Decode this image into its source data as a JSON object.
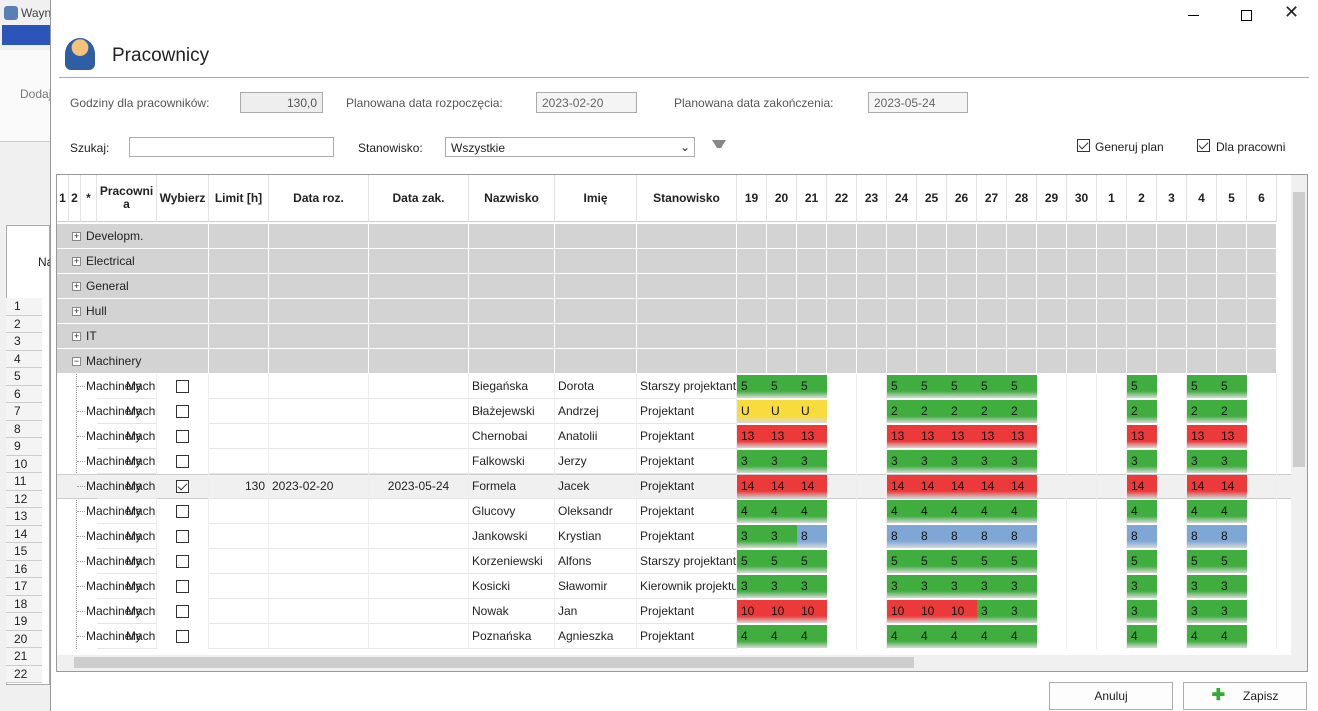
{
  "background": {
    "title": "Wayn",
    "add": "Dodaj",
    "column": "Na",
    "row_numbers": [
      "1",
      "2",
      "3",
      "4",
      "5",
      "6",
      "7",
      "8",
      "9",
      "10",
      "11",
      "12",
      "13",
      "14",
      "15",
      "16",
      "17",
      "18",
      "19",
      "20",
      "21",
      "22"
    ]
  },
  "window": {
    "title": "Pracownicy"
  },
  "form": {
    "hours_label": "Godziny dla pracowników:",
    "hours_value": "130,0",
    "start_label": "Planowana data rozpoczęcia:",
    "start_value": "2023-02-20",
    "end_label": "Planowana data zakończenia:",
    "end_value": "2023-05-24",
    "search_label": "Szukaj:",
    "position_label": "Stanowisko:",
    "position_value": "Wszystkie",
    "generate_label": "Generuj plan",
    "generate_checked": true,
    "for_workers_label": "Dla pracowni",
    "for_workers_checked": true
  },
  "table": {
    "headers": [
      "1",
      "2",
      "*",
      "Pracownia",
      "Wybierz",
      "Limit [h]",
      "Data roz.",
      "Data zak.",
      "Nazwisko",
      "Imię",
      "Stanowisko"
    ],
    "days": [
      "19",
      "20",
      "21",
      "22",
      "23",
      "24",
      "25",
      "26",
      "27",
      "28",
      "29",
      "30",
      "1",
      "2",
      "3",
      "4",
      "5",
      "6"
    ],
    "cell_colors": {
      "2": "#3fae3f",
      "3": "#3fae3f",
      "4": "#3fae3f",
      "5": "#3fae3f",
      "8": "#7fa7d6",
      "10": "#ec3a3a",
      "13": "#ec3a3a",
      "14": "#ec3a3a",
      "U": "#f7dc3c"
    },
    "groups": [
      "Developm.",
      "Electrical",
      "General",
      "Hull",
      "IT",
      "Machinery"
    ],
    "rows": [
      {
        "department": "Machinery",
        "selected": false,
        "limit": null,
        "start": null,
        "end": null,
        "surname": "Biegańska",
        "name": "Dorota",
        "position": "Starszy projektant",
        "days": [
          "5",
          "5",
          "5",
          null,
          null,
          "5",
          "5",
          "5",
          "5",
          "5",
          null,
          null,
          null,
          "5",
          null,
          "5",
          "5",
          null
        ]
      },
      {
        "department": "Machinery",
        "selected": false,
        "limit": null,
        "start": null,
        "end": null,
        "surname": "Błażejewski",
        "name": "Andrzej",
        "position": "Projektant",
        "days": [
          "U",
          "U",
          "U",
          null,
          null,
          "2",
          "2",
          "2",
          "2",
          "2",
          null,
          null,
          null,
          "2",
          null,
          "2",
          "2",
          null
        ]
      },
      {
        "department": "Machinery",
        "selected": false,
        "limit": null,
        "start": null,
        "end": null,
        "surname": "Chernobai",
        "name": "Anatolii",
        "position": "Projektant",
        "days": [
          "13",
          "13",
          "13",
          null,
          null,
          "13",
          "13",
          "13",
          "13",
          "13",
          null,
          null,
          null,
          "13",
          null,
          "13",
          "13",
          null
        ]
      },
      {
        "department": "Machinery",
        "selected": false,
        "limit": null,
        "start": null,
        "end": null,
        "surname": "Falkowski",
        "name": "Jerzy",
        "position": "Projektant",
        "days": [
          "3",
          "3",
          "3",
          null,
          null,
          "3",
          "3",
          "3",
          "3",
          "3",
          null,
          null,
          null,
          "3",
          null,
          "3",
          "3",
          null
        ]
      },
      {
        "department": "Machinery",
        "selected": true,
        "limit": 130,
        "start": "2023-02-20",
        "end": "2023-05-24",
        "surname": "Formela",
        "name": "Jacek",
        "position": "Projektant",
        "days": [
          "14",
          "14",
          "14",
          null,
          null,
          "14",
          "14",
          "14",
          "14",
          "14",
          null,
          null,
          null,
          "14",
          null,
          "14",
          "14",
          null
        ]
      },
      {
        "department": "Machinery",
        "selected": false,
        "limit": null,
        "start": null,
        "end": null,
        "surname": "Glucovy",
        "name": "Oleksandr",
        "position": "Projektant",
        "days": [
          "4",
          "4",
          "4",
          null,
          null,
          "4",
          "4",
          "4",
          "4",
          "4",
          null,
          null,
          null,
          "4",
          null,
          "4",
          "4",
          null
        ]
      },
      {
        "department": "Machinery",
        "selected": false,
        "limit": null,
        "start": null,
        "end": null,
        "surname": "Jankowski",
        "name": "Krystian",
        "position": "Projektant",
        "days": [
          "3",
          "3",
          "8",
          null,
          null,
          "8",
          "8",
          "8",
          "8",
          "8",
          null,
          null,
          null,
          "8",
          null,
          "8",
          "8",
          null
        ]
      },
      {
        "department": "Machinery",
        "selected": false,
        "limit": null,
        "start": null,
        "end": null,
        "surname": "Korzeniewski",
        "name": "Alfons",
        "position": "Starszy projektant",
        "days": [
          "5",
          "5",
          "5",
          null,
          null,
          "5",
          "5",
          "5",
          "5",
          "5",
          null,
          null,
          null,
          "5",
          null,
          "5",
          "5",
          null
        ]
      },
      {
        "department": "Machinery",
        "selected": false,
        "limit": null,
        "start": null,
        "end": null,
        "surname": "Kosicki",
        "name": "Sławomir",
        "position": "Kierownik projektu",
        "days": [
          "3",
          "3",
          "3",
          null,
          null,
          "3",
          "3",
          "3",
          "3",
          "3",
          null,
          null,
          null,
          "3",
          null,
          "3",
          "3",
          null
        ]
      },
      {
        "department": "Machinery",
        "selected": false,
        "limit": null,
        "start": null,
        "end": null,
        "surname": "Nowak",
        "name": "Jan",
        "position": "Projektant",
        "days": [
          "10",
          "10",
          "10",
          null,
          null,
          "10",
          "10",
          "10",
          "3",
          "3",
          null,
          null,
          null,
          "3",
          null,
          "3",
          "3",
          null
        ]
      },
      {
        "department": "Machinery",
        "selected": false,
        "limit": null,
        "start": null,
        "end": null,
        "surname": "Poznańska",
        "name": "Agnieszka",
        "position": "Projektant",
        "days": [
          "4",
          "4",
          "4",
          null,
          null,
          "4",
          "4",
          "4",
          "4",
          "4",
          null,
          null,
          null,
          "4",
          null,
          "4",
          "4",
          null
        ]
      }
    ]
  },
  "buttons": {
    "cancel": "Anuluj",
    "save": "Zapisz"
  }
}
